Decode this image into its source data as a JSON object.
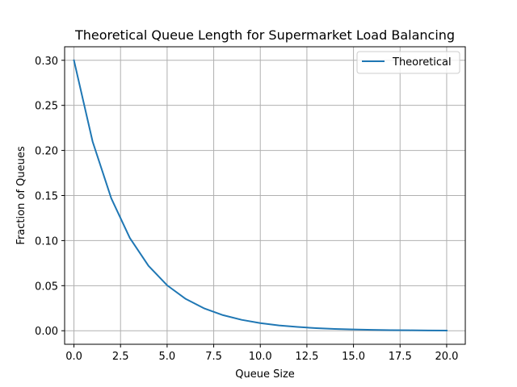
{
  "chart_data": {
    "type": "line",
    "title": "Theoretical Queue Length for Supermarket Load Balancing",
    "xlabel": "Queue Size",
    "ylabel": "Fraction of Queues",
    "xlim": [
      -0.5,
      21
    ],
    "ylim": [
      -0.015,
      0.315
    ],
    "xticks": [
      0,
      2.5,
      5,
      7.5,
      10,
      12.5,
      15,
      17.5,
      20
    ],
    "xtick_labels": [
      "0.0",
      "2.5",
      "5.0",
      "7.5",
      "10.0",
      "12.5",
      "15.0",
      "17.5",
      "20.0"
    ],
    "yticks": [
      0,
      0.05,
      0.1,
      0.15,
      0.2,
      0.25,
      0.3
    ],
    "ytick_labels": [
      "0.00",
      "0.05",
      "0.10",
      "0.15",
      "0.20",
      "0.25",
      "0.30"
    ],
    "grid": true,
    "legend_position": "top-right",
    "series": [
      {
        "name": "Theoretical",
        "color": "#1f77b4",
        "x": [
          0,
          1,
          2,
          3,
          4,
          5,
          6,
          7,
          8,
          9,
          10,
          11,
          12,
          13,
          14,
          15,
          16,
          17,
          18,
          19,
          20
        ],
        "y": [
          0.3,
          0.21,
          0.147,
          0.1029,
          0.072,
          0.0504,
          0.0353,
          0.0247,
          0.0173,
          0.0121,
          0.0085,
          0.0059,
          0.0042,
          0.0029,
          0.002,
          0.0014,
          0.001,
          0.0007,
          0.0005,
          0.0003,
          0.0002
        ]
      }
    ]
  }
}
